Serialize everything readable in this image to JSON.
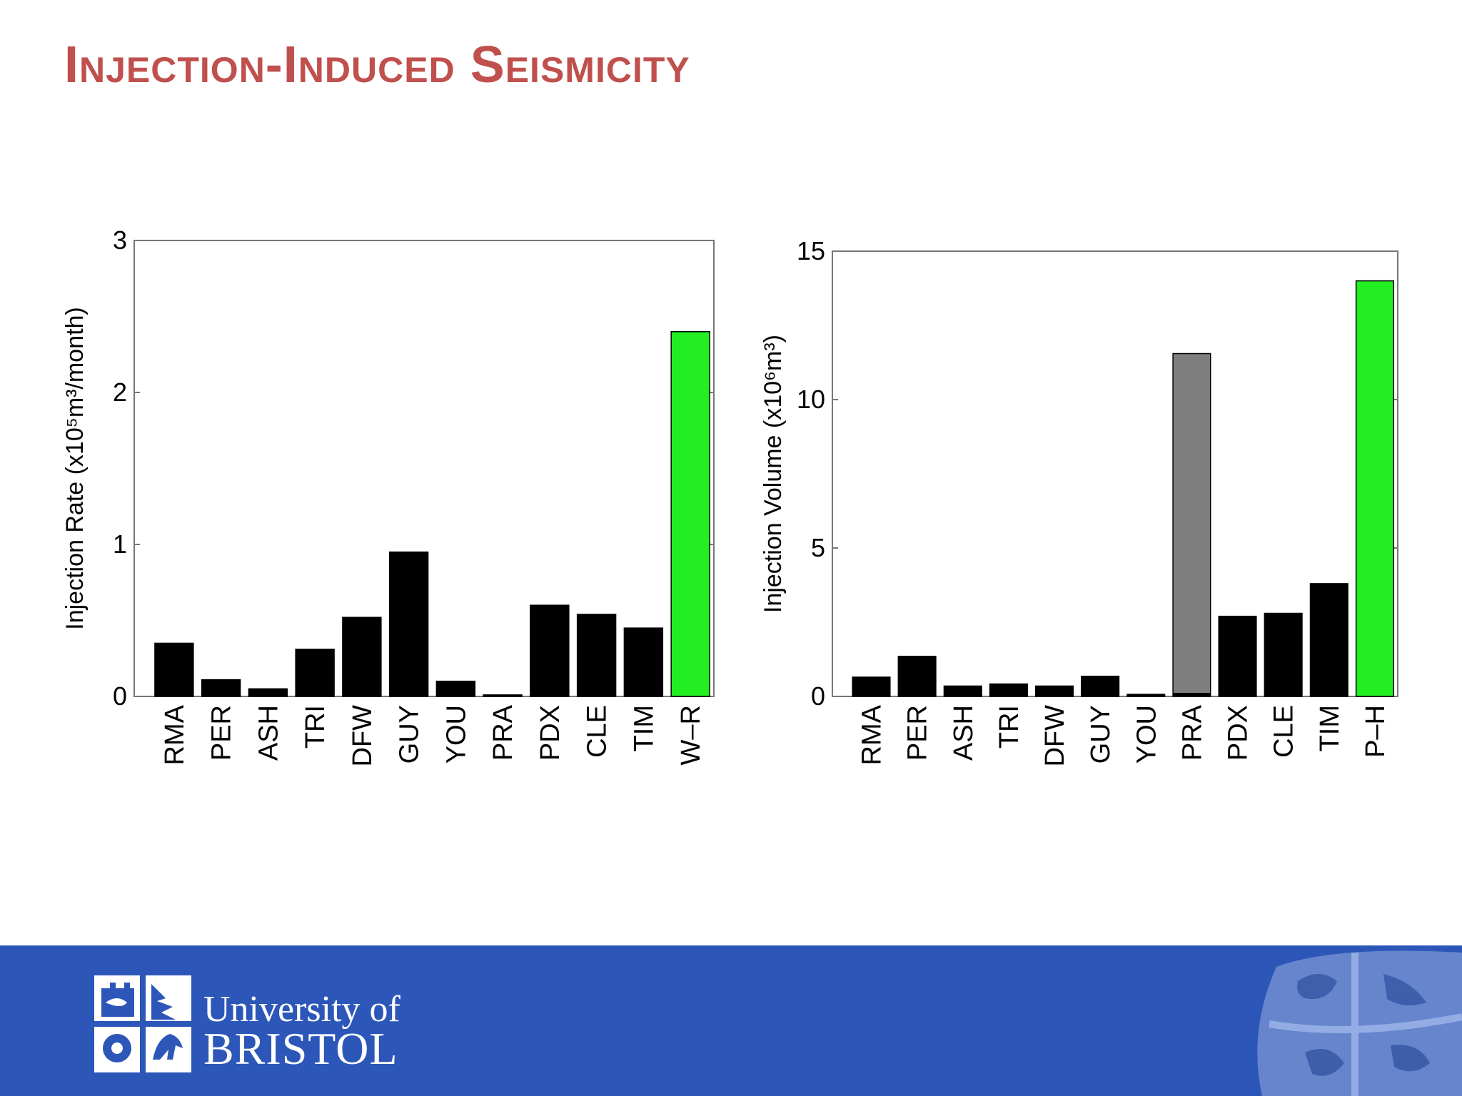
{
  "slide": {
    "title": "Injection-Induced Seismicity"
  },
  "footer": {
    "logo_line1": "University of",
    "logo_line2": "BRISTOL",
    "background": "#2c57b9",
    "icons": [
      "university-crest-icon",
      "crest-watermark-icon"
    ]
  },
  "colors": {
    "title": "#c0504d",
    "bar_default": "#000000",
    "bar_highlight": "#22ee22",
    "bar_muted": "#7f7f7f"
  },
  "chart_data": [
    {
      "type": "bar",
      "categories": [
        "RMA",
        "PER",
        "ASH",
        "TRI",
        "DFW",
        "GUY",
        "YOU",
        "PRA",
        "PDX",
        "CLE",
        "TIM",
        "W–R"
      ],
      "values": [
        0.35,
        0.11,
        0.05,
        0.31,
        0.52,
        0.95,
        0.1,
        0.01,
        0.6,
        0.54,
        0.45,
        2.4
      ],
      "colors": [
        "#000000",
        "#000000",
        "#000000",
        "#000000",
        "#000000",
        "#000000",
        "#000000",
        "#000000",
        "#000000",
        "#000000",
        "#000000",
        "#22ee22"
      ],
      "ylabel": "Injection Rate (x10⁵m³/month)",
      "ylim": [
        0,
        3
      ],
      "yticks": [
        0,
        1,
        2,
        3
      ],
      "ytick_labels": [
        "0",
        "1",
        "2",
        "3"
      ],
      "grid": false
    },
    {
      "type": "bar",
      "categories": [
        "RMA",
        "PER",
        "ASH",
        "TRI",
        "DFW",
        "GUY",
        "YOU",
        "PRA",
        "PDX",
        "CLE",
        "TIM",
        "P–H"
      ],
      "values": [
        0.65,
        1.35,
        0.35,
        0.42,
        0.35,
        0.68,
        0.07,
        11.55,
        2.7,
        2.8,
        3.8,
        14.0
      ],
      "colors": [
        "#000000",
        "#000000",
        "#000000",
        "#000000",
        "#000000",
        "#000000",
        "#000000",
        "#7f7f7f",
        "#000000",
        "#000000",
        "#000000",
        "#22ee22"
      ],
      "overlay": [
        {
          "category": "PRA",
          "value": 0.12,
          "color": "#000000"
        }
      ],
      "ylabel": "Injection Volume (x10⁶m³)",
      "ylim": [
        0,
        15
      ],
      "yticks": [
        0,
        5,
        10,
        15
      ],
      "ytick_labels": [
        "0",
        "5",
        "10",
        "15"
      ],
      "grid": false
    }
  ]
}
